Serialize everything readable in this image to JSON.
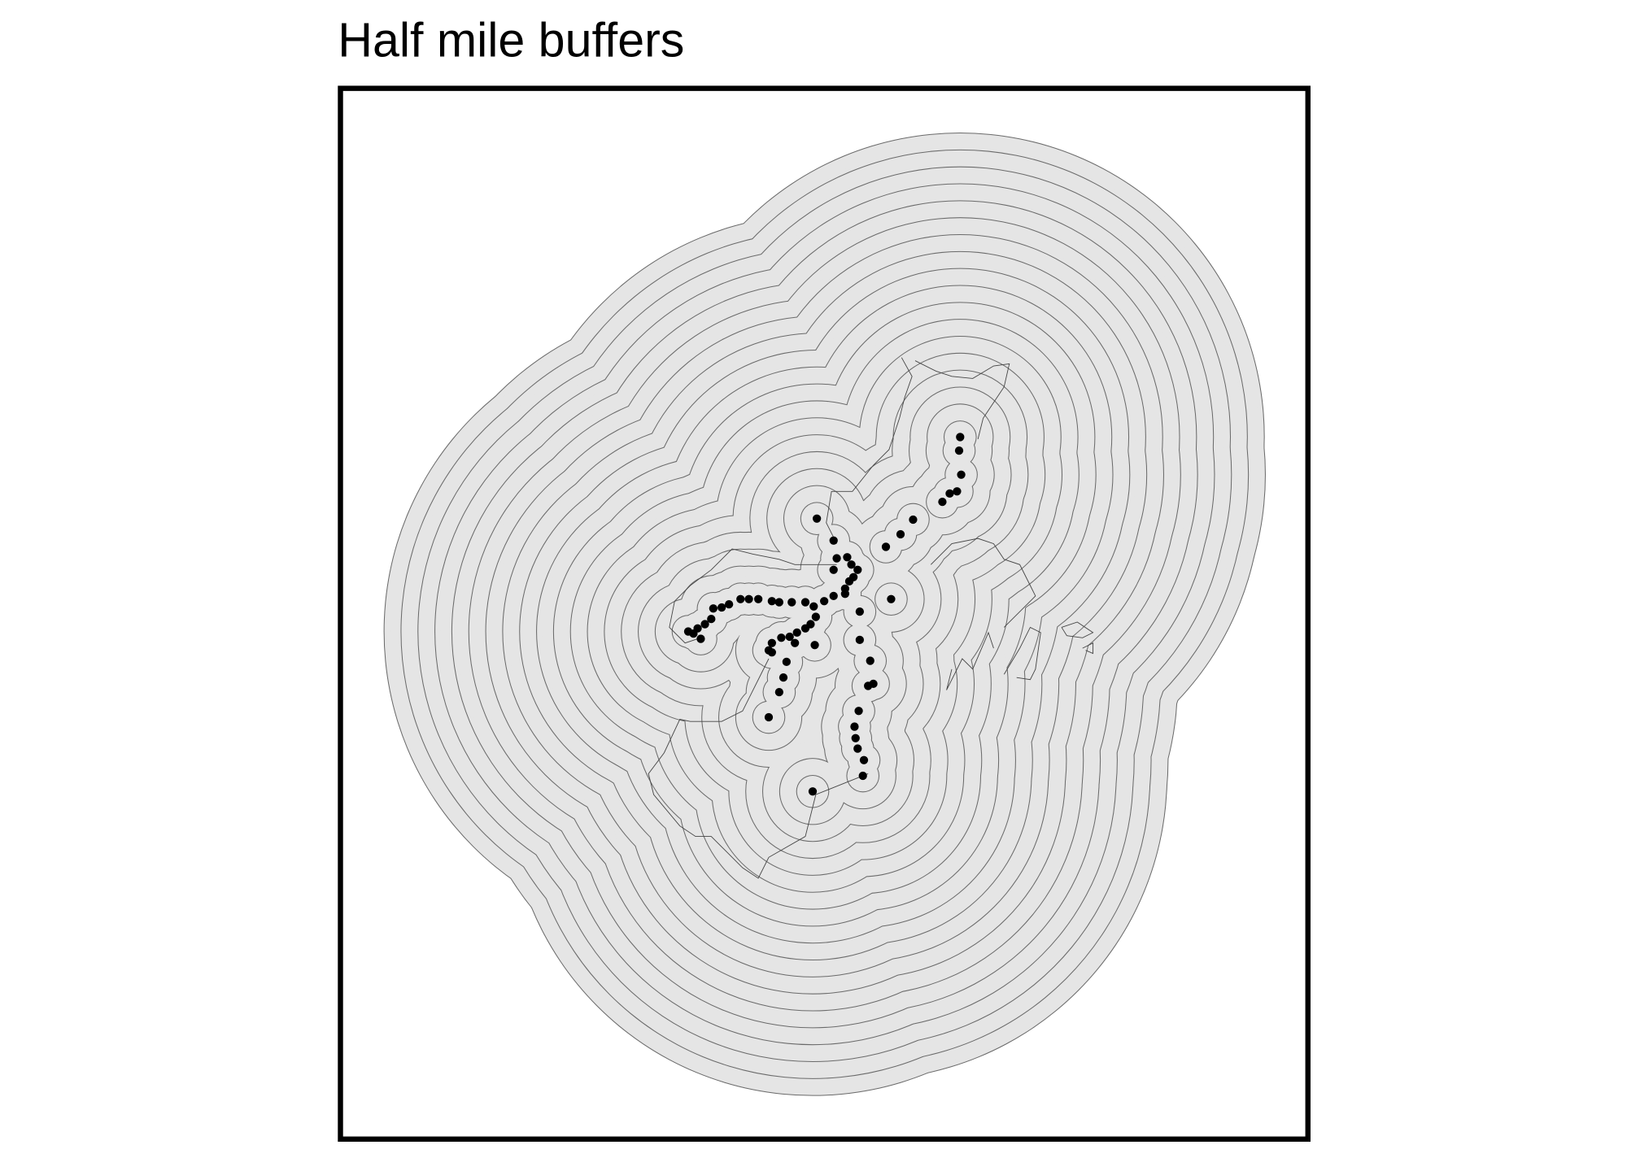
{
  "title": "Half mile buffers"
}
